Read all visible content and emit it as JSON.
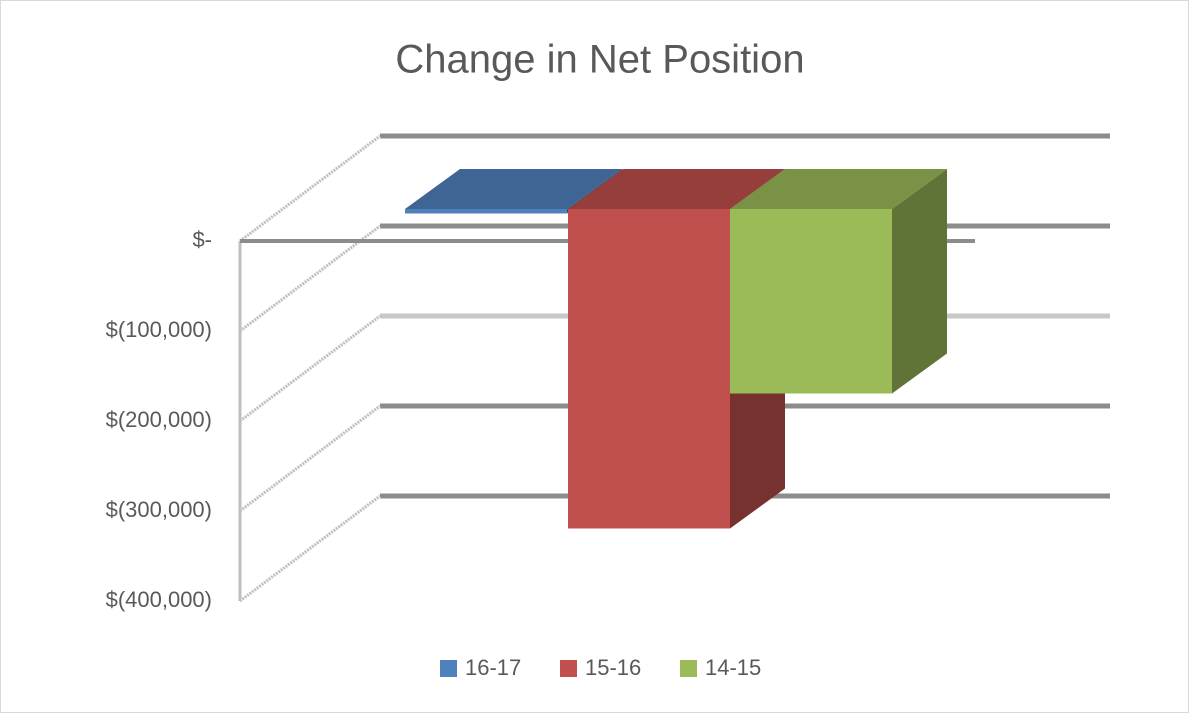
{
  "chart_data": {
    "type": "bar3d",
    "title": "Change in Net Position",
    "categories": [
      null
    ],
    "series": [
      {
        "name": "16-17",
        "color": "#4f81bd",
        "values": [
          -5000
        ]
      },
      {
        "name": "15-16",
        "color": "#c0504d",
        "values": [
          -355000
        ]
      },
      {
        "name": "14-15",
        "color": "#9bbb59",
        "values": [
          -205000
        ]
      }
    ],
    "ylim": [
      -400000,
      0
    ],
    "yticks": [
      {
        "value": 0,
        "label": "$-"
      },
      {
        "value": -100000,
        "label": "$(100,000)"
      },
      {
        "value": -200000,
        "label": "$(200,000)"
      },
      {
        "value": -300000,
        "label": "$(300,000)"
      },
      {
        "value": -400000,
        "label": "$(400,000)"
      }
    ],
    "grid": true,
    "legend": "bottom"
  }
}
